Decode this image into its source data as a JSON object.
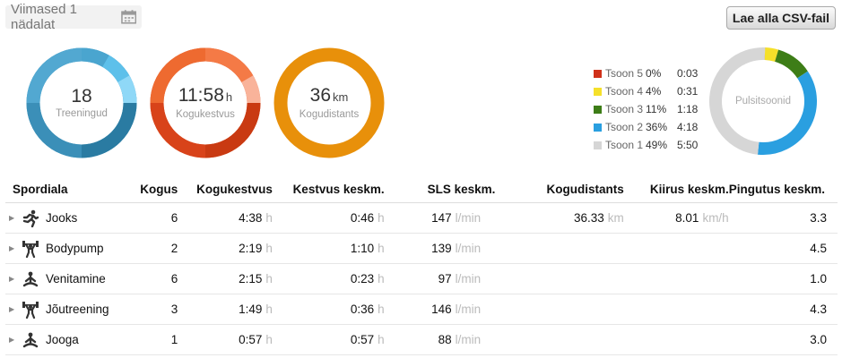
{
  "period": {
    "label": "Viimased 1 nädalat",
    "icon": "calendar-icon"
  },
  "csv_button": {
    "label": "Lae alla CSV-fail"
  },
  "summary": {
    "sessions": {
      "value": "18",
      "label": "Treeningud",
      "color": "#3d9cc4"
    },
    "duration": {
      "value": "11:58",
      "unit": "h",
      "label": "Kogukestvus",
      "color": "#e8501f"
    },
    "distance": {
      "value": "36",
      "unit": "km",
      "label": "Kogudistants",
      "color": "#e8900a"
    }
  },
  "heart_zones": {
    "label": "Pulsitsoonid",
    "zones": [
      {
        "name": "Tsoon 5",
        "percent": "0%",
        "time": "0:03",
        "color": "#d0311a"
      },
      {
        "name": "Tsoon 4",
        "percent": "4%",
        "time": "0:31",
        "color": "#f5e02a"
      },
      {
        "name": "Tsoon 3",
        "percent": "11%",
        "time": "1:18",
        "color": "#3d7d17"
      },
      {
        "name": "Tsoon 2",
        "percent": "36%",
        "time": "4:18",
        "color": "#2a9fe0"
      },
      {
        "name": "Tsoon 1",
        "percent": "49%",
        "time": "5:50",
        "color": "#d6d6d6"
      }
    ]
  },
  "table": {
    "headers": {
      "sport": "Spordiala",
      "count": "Kogus",
      "duration": "Kogukestvus",
      "avg_duration": "Kestvus keskm.",
      "sls": "SLS keskm.",
      "distance": "Kogudistants",
      "speed": "Kiirus keskm.",
      "effort": "Pingutus keskm."
    },
    "units": {
      "hours": "h",
      "per_min": "l/min",
      "km": "km",
      "kmh": "km/h"
    },
    "rows": [
      {
        "sport": "Jooks",
        "icon": "running-icon",
        "count": "6",
        "duration": "4:38",
        "avg_duration": "0:46",
        "sls": "147",
        "distance": "36.33",
        "speed": "8.01",
        "effort": "3.3"
      },
      {
        "sport": "Bodypump",
        "icon": "weightlifting-icon",
        "count": "2",
        "duration": "2:19",
        "avg_duration": "1:10",
        "sls": "139",
        "distance": "",
        "speed": "",
        "effort": "4.5"
      },
      {
        "sport": "Venitamine",
        "icon": "stretching-icon",
        "count": "6",
        "duration": "2:15",
        "avg_duration": "0:23",
        "sls": "97",
        "distance": "",
        "speed": "",
        "effort": "1.0"
      },
      {
        "sport": "Jõutreening",
        "icon": "weightlifting-icon",
        "count": "3",
        "duration": "1:49",
        "avg_duration": "0:36",
        "sls": "146",
        "distance": "",
        "speed": "",
        "effort": "4.3"
      },
      {
        "sport": "Jooga",
        "icon": "yoga-icon",
        "count": "1",
        "duration": "0:57",
        "avg_duration": "0:57",
        "sls": "88",
        "distance": "",
        "speed": "",
        "effort": "3.0"
      }
    ]
  }
}
